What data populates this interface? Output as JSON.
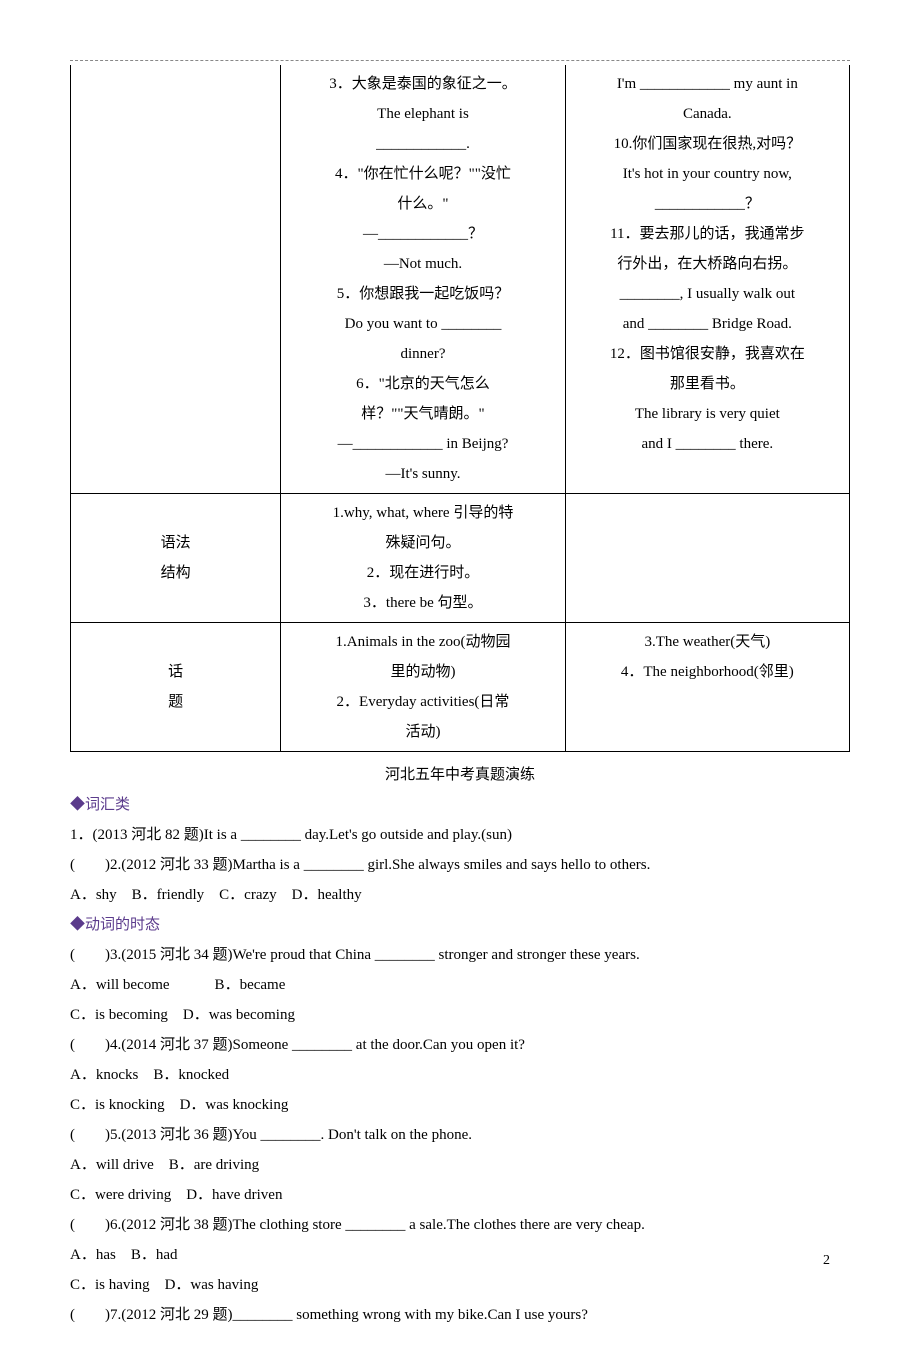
{
  "table": {
    "row1": {
      "left": "",
      "mid": "3．大象是泰国的象征之一。\nThe elephant is\n____________.\n4．\"你在忙什么呢？\"\"没忙\n什么。\"\n—____________？\n—Not much.\n5．你想跟我一起吃饭吗？\nDo you want to ________\ndinner?\n6．\"北京的天气怎么\n样？\"\"天气晴朗。\"\n—____________ in Beijng?\n—It's sunny.",
      "right": "I'm ____________ my aunt in\nCanada.\n10.你们国家现在很热,对吗？\nIt's hot in your country now,\n____________？\n11．要去那儿的话，我通常步\n行外出，在大桥路向右拐。\n________, I usually walk out\nand ________ Bridge Road.\n12．图书馆很安静，我喜欢在\n那里看书。\nThe library is very quiet\nand I ________ there."
    },
    "row2": {
      "left": "语法\n结构",
      "mid": "1.why, what, where 引导的特\n殊疑问句。\n2．现在进行时。\n3．there be 句型。",
      "right": ""
    },
    "row3": {
      "left": "话\n题",
      "mid": "1.Animals in the zoo(动物园\n里的动物)\n2．Everyday activities(日常\n活动)",
      "right": "3.The weather(天气)\n4．The neighborhood(邻里)"
    }
  },
  "sectionTitle": "河北五年中考真题演练",
  "vocabLabel": "◆词汇类",
  "q1": "1．(2013 河北 82 题)It is a ________ day.Let's go outside and play.(sun)",
  "q2": "(　　)2.(2012 河北 33 题)Martha is a ________ girl.She always smiles and says hello to others.",
  "q2opts": "A．shy　B．friendly　C．crazy　D．healthy",
  "tenseLabel": "◆动词的时态",
  "q3": "(　　)3.(2015 河北 34 题)We're proud that China ________ stronger and stronger these years.",
  "q3a": "A．will become　　　B．became",
  "q3b": "C．is becoming　D．was becoming",
  "q4": "(　　)4.(2014 河北 37 题)Someone ________ at the door.Can you open it?",
  "q4a": "A．knocks　B．knocked",
  "q4b": "C．is knocking　D．was knocking",
  "q5": "(　　)5.(2013 河北 36 题)You ________. Don't talk on the phone.",
  "q5a": "A．will drive　B．are driving",
  "q5b": "C．were driving　D．have driven",
  "q6": "(　　)6.(2012 河北 38 题)The clothing store ________ a sale.The clothes there are very cheap.",
  "q6a": "A．has　B．had",
  "q6b": "C．is having　D．was having",
  "q7": "(　　)7.(2012 河北 29 题)________ something wrong with my bike.Can I use yours?",
  "pageNum": "2"
}
